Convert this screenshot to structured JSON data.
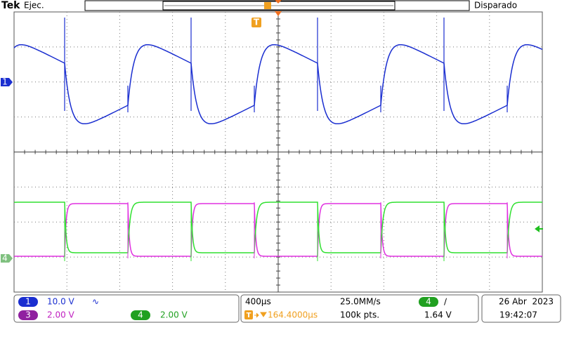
{
  "header": {
    "brand": "Tek",
    "status": "Ejec.",
    "trigger_state": "Disparado"
  },
  "markers": {
    "trigger": "T",
    "ch1": "1",
    "ch4": "4"
  },
  "readout": {
    "ch1": {
      "number": "1",
      "scale": "10.0 V",
      "coupling": "∿"
    },
    "ch3": {
      "number": "3",
      "scale": "2.00 V"
    },
    "ch4": {
      "number": "4",
      "scale": "2.00 V"
    },
    "timebase": "400µs",
    "sample_rate": "25.0MM/s",
    "trigger_source": "4",
    "trigger_slope": "∕",
    "trigger_position": "164.4000µs",
    "record_length": "100k pts.",
    "trigger_level": "1.64 V",
    "date": "26 Abr  2023",
    "time": "19:42:07"
  }
}
